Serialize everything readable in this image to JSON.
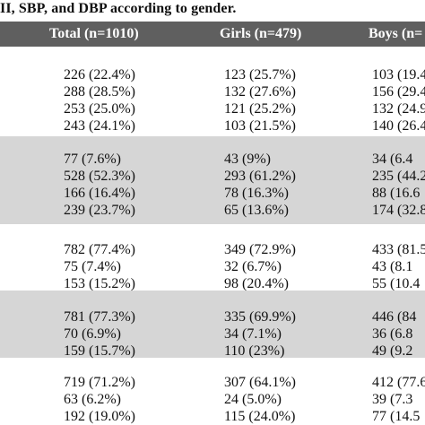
{
  "title": "II, SBP, and DBP according to gender.",
  "columns": {
    "total": "Total  (n=1010)",
    "girls": "Girls (n=479)",
    "boys": "Boys (n="
  },
  "groups": [
    {
      "shaded": false,
      "rows": [
        {
          "total": "226 (22.4%)",
          "girls": "123 (25.7%)",
          "boys": "103 (19.4"
        },
        {
          "total": "288 (28.5%)",
          "girls": "132 (27.6%)",
          "boys": "156 (29.4"
        },
        {
          "total": "253 (25.0%)",
          "girls": "121 (25.2%)",
          "boys": "132 (24.9"
        },
        {
          "total": "243 (24.1%)",
          "girls": "103 (21.5%)",
          "boys": "140 (26.4"
        }
      ]
    },
    {
      "shaded": true,
      "rows": [
        {
          "total": "77 (7.6%)",
          "girls": "43 (9%)",
          "boys": "34 (6.4"
        },
        {
          "total": "528 (52.3%)",
          "girls": "293 (61.2%)",
          "boys": "235 (44.2"
        },
        {
          "total": "166 (16.4%)",
          "girls": "78 (16.3%)",
          "boys": "88 (16.6"
        },
        {
          "total": "239 (23.7%)",
          "girls": "65 (13.6%)",
          "boys": "174 (32.8"
        }
      ]
    },
    {
      "shaded": false,
      "rows": [
        {
          "total": "782 (77.4%)",
          "girls": "349 (72.9%)",
          "boys": "433 (81.5"
        },
        {
          "total": "75 (7.4%)",
          "girls": "32 (6.7%)",
          "boys": "43 (8.1"
        },
        {
          "total": "153 (15.2%)",
          "girls": "98 (20.4%)",
          "boys": "55 (10.4"
        }
      ]
    },
    {
      "shaded": true,
      "rows": [
        {
          "total": "781 (77.3%)",
          "girls": "335 (69.9%)",
          "boys": "446 (84"
        },
        {
          "total": "70 (6.9%)",
          "girls": "34 (7.1%)",
          "boys": "36 (6.8"
        },
        {
          "total": "159 (15.7%)",
          "girls": "110 (23%)",
          "boys": "49 (9.2"
        }
      ]
    },
    {
      "shaded": false,
      "rows": [
        {
          "total": "719 (71.2%)",
          "girls": "307 (64.1%)",
          "boys": "412 (77.6"
        },
        {
          "total": "63 (6.2%)",
          "girls": "24 (5.0%)",
          "boys": "39 (7.3"
        },
        {
          "total": "192 (19.0%)",
          "girls": "115 (24.0%)",
          "boys": "77 (14.5"
        }
      ]
    }
  ]
}
